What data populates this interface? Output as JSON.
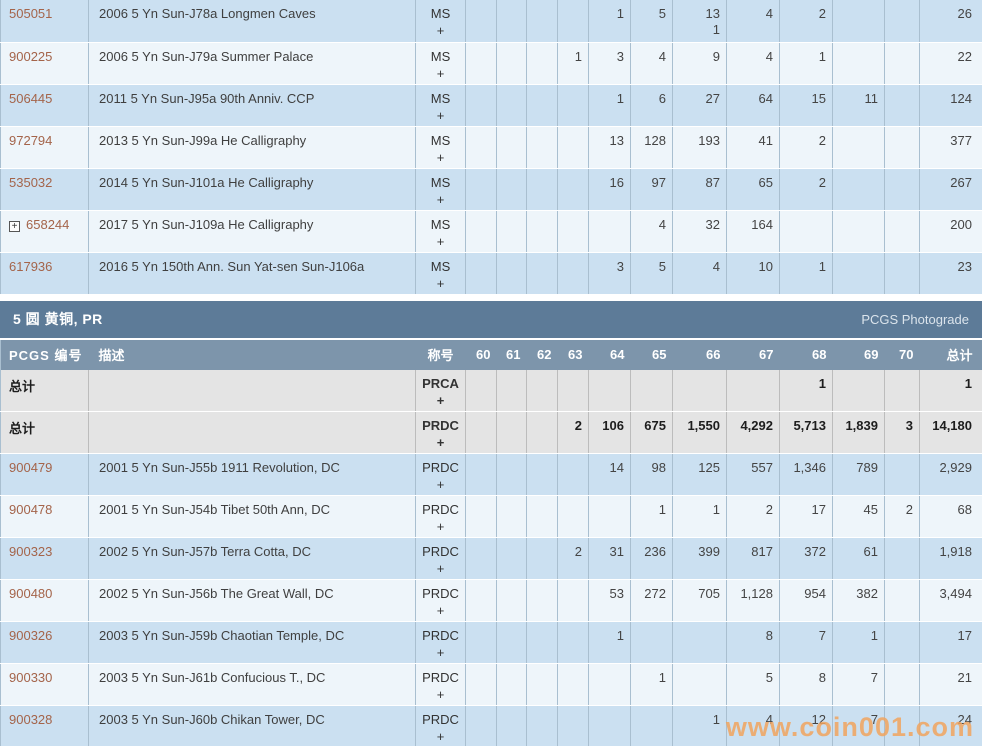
{
  "watermark": "www.coin001.com",
  "colors": {
    "link": "#a4644a",
    "row_dark": "#cbe0f1",
    "row_light": "#eef5fa",
    "section_bar": "#5d7b98",
    "column_header": "#7d95ab",
    "total_row_bg": "#e4e4e4",
    "watermark": "#f1a35e"
  },
  "section": {
    "title": "5 圆 黄铜, PR",
    "photograde_label": "PCGS Photograde"
  },
  "ms_table": {
    "rows": [
      {
        "kind": "coin",
        "id": "505051",
        "expand": false,
        "desc": "2006 5 Yn Sun-J78a Longmen Caves",
        "desig": "MS",
        "plus": "+",
        "grades": [
          "",
          "",
          "",
          "",
          "1",
          "5",
          "13\n1",
          "4",
          "2",
          "",
          ""
        ],
        "total": "26"
      },
      {
        "kind": "coin",
        "id": "900225",
        "expand": false,
        "desc": "2006 5 Yn Sun-J79a Summer Palace",
        "desig": "MS",
        "plus": "+",
        "grades": [
          "",
          "",
          "",
          "1",
          "3",
          "4",
          "9",
          "4",
          "1",
          "",
          ""
        ],
        "total": "22"
      },
      {
        "kind": "coin",
        "id": "506445",
        "expand": false,
        "desc": "2011 5 Yn Sun-J95a 90th Anniv. CCP",
        "desig": "MS",
        "plus": "+",
        "grades": [
          "",
          "",
          "",
          "",
          "1",
          "6",
          "27",
          "64",
          "15",
          "11",
          ""
        ],
        "total": "124"
      },
      {
        "kind": "coin",
        "id": "972794",
        "expand": false,
        "desc": "2013 5 Yn Sun-J99a He Calligraphy",
        "desig": "MS",
        "plus": "+",
        "grades": [
          "",
          "",
          "",
          "",
          "13",
          "128",
          "193",
          "41",
          "2",
          "",
          ""
        ],
        "total": "377"
      },
      {
        "kind": "coin",
        "id": "535032",
        "expand": false,
        "desc": "2014 5 Yn Sun-J101a He Calligraphy",
        "desig": "MS",
        "plus": "+",
        "grades": [
          "",
          "",
          "",
          "",
          "16",
          "97",
          "87",
          "65",
          "2",
          "",
          ""
        ],
        "total": "267"
      },
      {
        "kind": "coin",
        "id": "658244",
        "expand": true,
        "desc": "2017 5 Yn Sun-J109a He Calligraphy",
        "desig": "MS",
        "plus": "+",
        "grades": [
          "",
          "",
          "",
          "",
          "",
          "4",
          "32",
          "164",
          "",
          "",
          ""
        ],
        "total": "200"
      },
      {
        "kind": "coin",
        "id": "617936",
        "expand": false,
        "desc": "2016 5 Yn 150th Ann. Sun Yat-sen Sun-J106a",
        "desig": "MS",
        "plus": "+",
        "grades": [
          "",
          "",
          "",
          "",
          "3",
          "5",
          "4",
          "10",
          "1",
          "",
          ""
        ],
        "total": "23"
      }
    ]
  },
  "pr_table": {
    "headers": {
      "id": "PCGS 编号",
      "desc": "描述",
      "desig": "称号",
      "grades": [
        "60",
        "61",
        "62",
        "63",
        "64",
        "65",
        "66",
        "67",
        "68",
        "69",
        "70"
      ],
      "total": "总计"
    },
    "rows": [
      {
        "kind": "total",
        "label": "总计",
        "expand": false,
        "desc": "",
        "desig": "PRCA",
        "plus": "+",
        "grades": [
          "",
          "",
          "",
          "",
          "",
          "",
          "",
          "",
          "1",
          "",
          ""
        ],
        "total": "1"
      },
      {
        "kind": "total",
        "label": "总计",
        "expand": false,
        "desc": "",
        "desig": "PRDC",
        "plus": "+",
        "grades": [
          "",
          "",
          "",
          "2",
          "106",
          "675",
          "1,550",
          "4,292",
          "5,713",
          "1,839",
          "3"
        ],
        "total": "14,180"
      },
      {
        "kind": "coin",
        "id": "900479",
        "expand": false,
        "desc": "2001 5 Yn Sun-J55b 1911 Revolution, DC",
        "desig": "PRDC",
        "plus": "+",
        "grades": [
          "",
          "",
          "",
          "",
          "14",
          "98",
          "125",
          "557",
          "1,346",
          "789",
          ""
        ],
        "total": "2,929"
      },
      {
        "kind": "coin",
        "id": "900478",
        "expand": false,
        "desc": "2001 5 Yn Sun-J54b Tibet 50th Ann, DC",
        "desig": "PRDC",
        "plus": "+",
        "grades": [
          "",
          "",
          "",
          "",
          "",
          "1",
          "1",
          "2",
          "17",
          "45",
          "2"
        ],
        "total": "68"
      },
      {
        "kind": "coin",
        "id": "900323",
        "expand": false,
        "desc": "2002 5 Yn Sun-J57b Terra Cotta, DC",
        "desig": "PRDC",
        "plus": "+",
        "grades": [
          "",
          "",
          "",
          "2",
          "31",
          "236",
          "399",
          "817",
          "372",
          "61",
          ""
        ],
        "total": "1,918"
      },
      {
        "kind": "coin",
        "id": "900480",
        "expand": false,
        "desc": "2002 5 Yn Sun-J56b The Great Wall, DC",
        "desig": "PRDC",
        "plus": "+",
        "grades": [
          "",
          "",
          "",
          "",
          "53",
          "272",
          "705",
          "1,128",
          "954",
          "382",
          ""
        ],
        "total": "3,494"
      },
      {
        "kind": "coin",
        "id": "900326",
        "expand": false,
        "desc": "2003 5 Yn Sun-J59b Chaotian Temple, DC",
        "desig": "PRDC",
        "plus": "+",
        "grades": [
          "",
          "",
          "",
          "",
          "1",
          "",
          "",
          "8",
          "7",
          "1",
          ""
        ],
        "total": "17"
      },
      {
        "kind": "coin",
        "id": "900330",
        "expand": false,
        "desc": "2003 5 Yn Sun-J61b Confucious T., DC",
        "desig": "PRDC",
        "plus": "+",
        "grades": [
          "",
          "",
          "",
          "",
          "",
          "1",
          "",
          "5",
          "8",
          "7",
          ""
        ],
        "total": "21"
      },
      {
        "kind": "coin",
        "id": "900328",
        "expand": false,
        "desc": "2003 5 Yn Sun-J60b Chikan Tower, DC",
        "desig": "PRDC",
        "plus": "+",
        "grades": [
          "",
          "",
          "",
          "",
          "",
          "",
          "1",
          "4",
          "12",
          "7",
          ""
        ],
        "total": "24"
      }
    ]
  }
}
